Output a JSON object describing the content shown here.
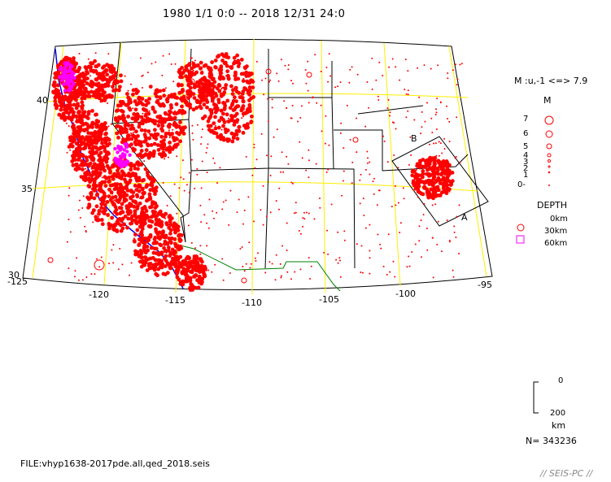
{
  "title": "1980 1/1 0:0 -- 2018 12/31 24:0",
  "legend": {
    "mag_label": "M :u,-1 <=> 7.9",
    "m_header": "M",
    "m_levels": [
      "7",
      "6",
      "5",
      "4",
      "3",
      "2",
      "1",
      "0-"
    ],
    "depth_header": "DEPTH",
    "depth_levels": [
      "0km",
      "30km",
      "60km"
    ],
    "depth_colors": [
      "#ff0000",
      "#ff0000",
      "#ff00ff"
    ]
  },
  "scale_bar": {
    "top_label": "0",
    "bottom_label": "200",
    "unit": "km"
  },
  "count": "N= 343236",
  "file": "FILE:vhyp1638-2017pde.all,qed_2018.seis",
  "brand": "// SEIS-PC //",
  "axes": {
    "lon_labels": [
      "-125",
      "-120",
      "-115",
      "-110",
      "-105",
      "-100",
      "-95"
    ],
    "lat_labels": [
      "30",
      "35",
      "40"
    ]
  },
  "cross_section": {
    "start_label": "A",
    "end_label": "B"
  },
  "colors": {
    "quake": "#ff0000",
    "deep": "#ff00ff",
    "grid": "#ffee00",
    "coast": "#0000ff",
    "border": "#008000"
  }
}
